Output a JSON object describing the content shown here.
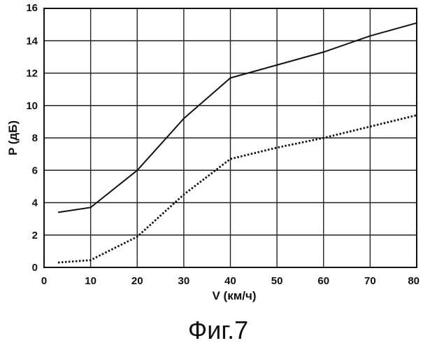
{
  "chart_data": {
    "type": "line",
    "title": "",
    "xlabel": "V (км/ч)",
    "ylabel": "P (дБ)",
    "xlim": [
      0,
      80
    ],
    "ylim": [
      0,
      16
    ],
    "xticks": [
      0,
      10,
      20,
      30,
      40,
      50,
      60,
      70,
      80
    ],
    "yticks": [
      0,
      2,
      4,
      6,
      8,
      10,
      12,
      14,
      16
    ],
    "grid": true,
    "legend": "none",
    "series": [
      {
        "style": "solid",
        "color": "#111111",
        "x": [
          3,
          10,
          20,
          30,
          40,
          50,
          60,
          70,
          80
        ],
        "y": [
          3.4,
          3.7,
          6.0,
          9.2,
          11.7,
          12.5,
          13.3,
          14.3,
          15.1
        ]
      },
      {
        "style": "dotted",
        "color": "#111111",
        "x": [
          3,
          10,
          20,
          30,
          40,
          50,
          60,
          70,
          80
        ],
        "y": [
          0.3,
          0.45,
          1.9,
          4.5,
          6.7,
          7.4,
          8.0,
          8.7,
          9.4
        ]
      }
    ]
  },
  "caption": "Фиг.7"
}
